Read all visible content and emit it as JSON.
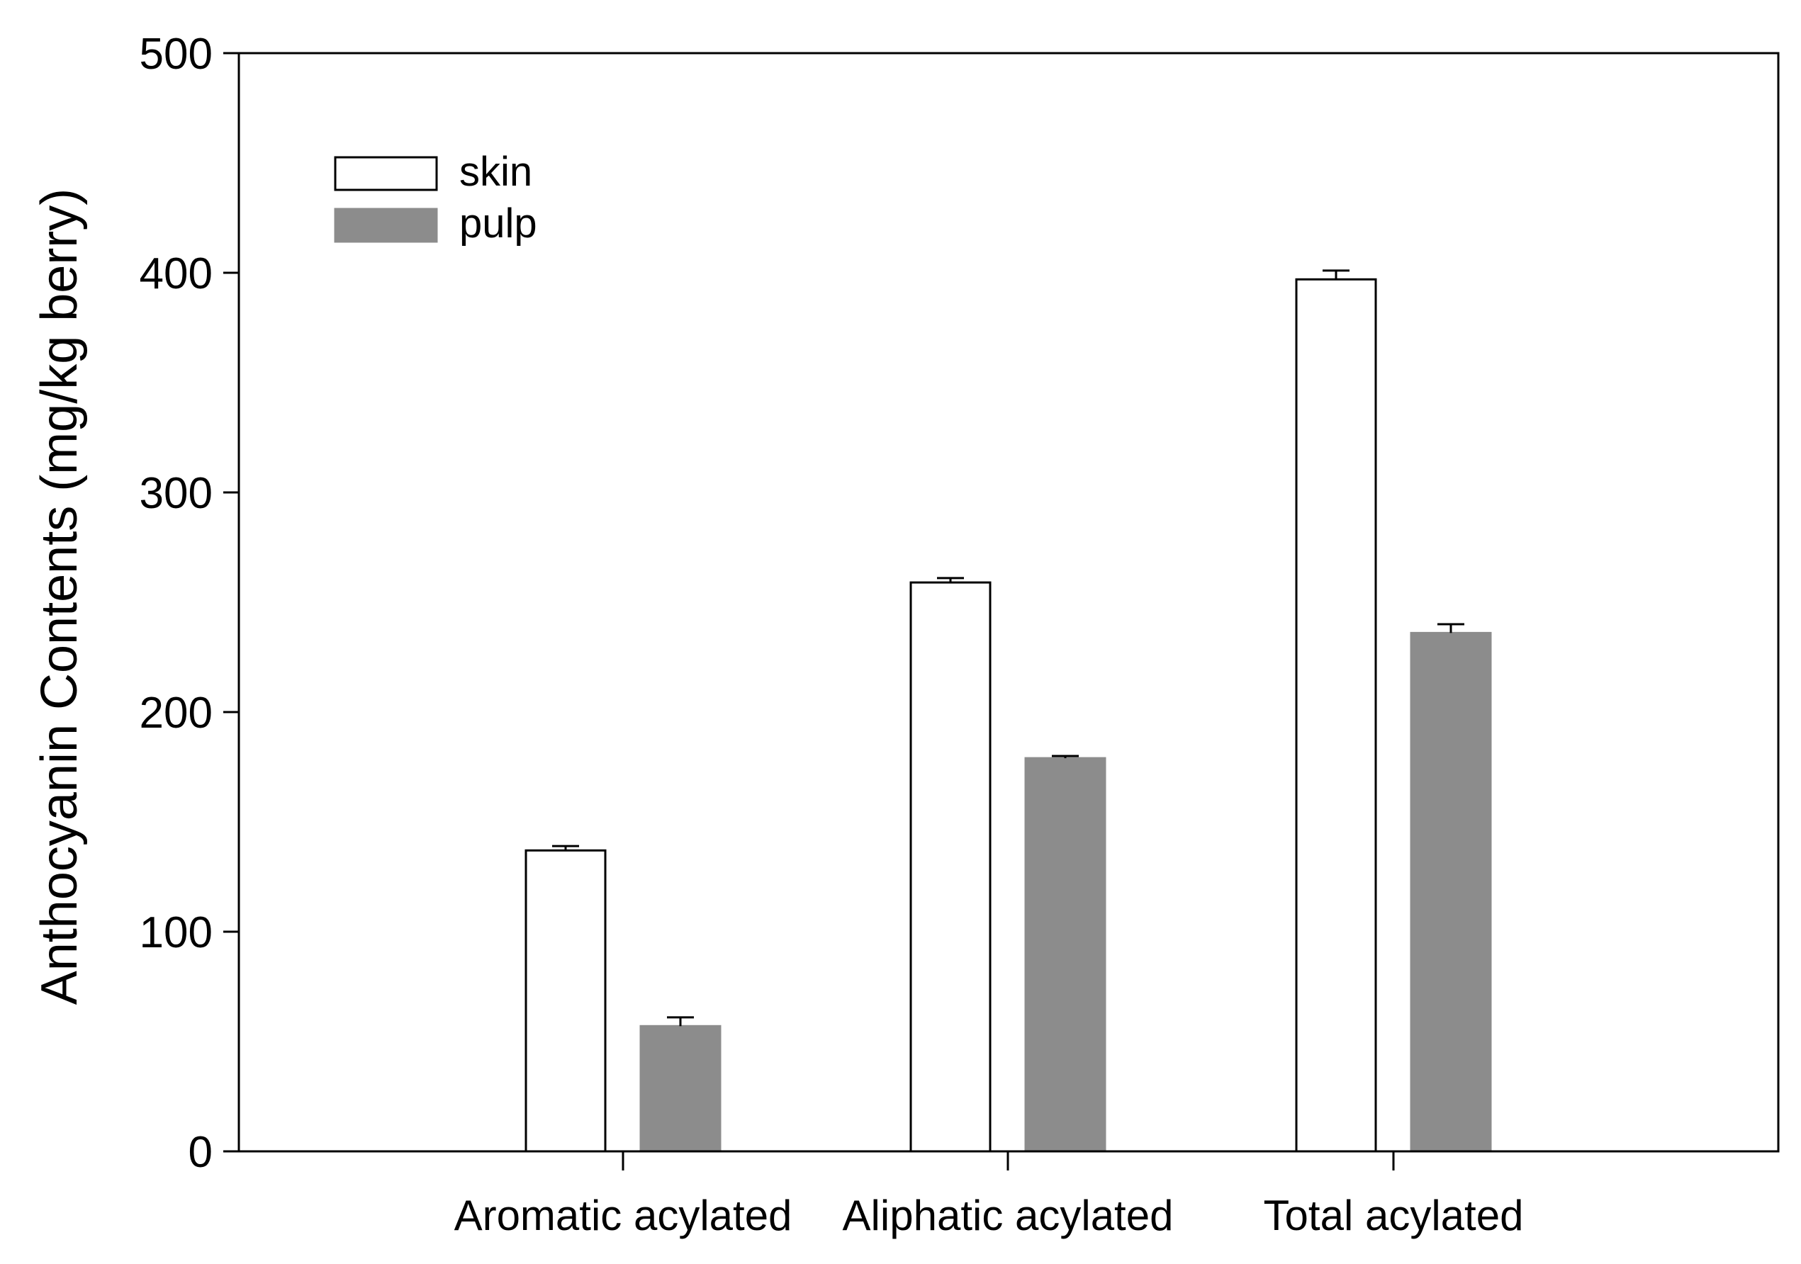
{
  "chart_data": {
    "type": "bar",
    "title": "",
    "xlabel": "",
    "ylabel": "Anthocyanin Contents (mg/kg berry)",
    "ylim": [
      0,
      500
    ],
    "yticks": [
      0,
      100,
      200,
      300,
      400,
      500
    ],
    "grid": false,
    "legend_position": "top-left",
    "categories": [
      "Aromatic acylated",
      "Aliphatic acylated",
      "Total acylated"
    ],
    "series": [
      {
        "name": "skin",
        "values": [
          137,
          259,
          397
        ],
        "errors": [
          2,
          2,
          4
        ],
        "color": "#ffffff",
        "stroke": "#000000"
      },
      {
        "name": "pulp",
        "values": [
          57,
          179,
          236
        ],
        "errors": [
          4,
          1,
          4
        ],
        "color": "#8c8c8c",
        "stroke": "#8c8c8c"
      }
    ]
  }
}
